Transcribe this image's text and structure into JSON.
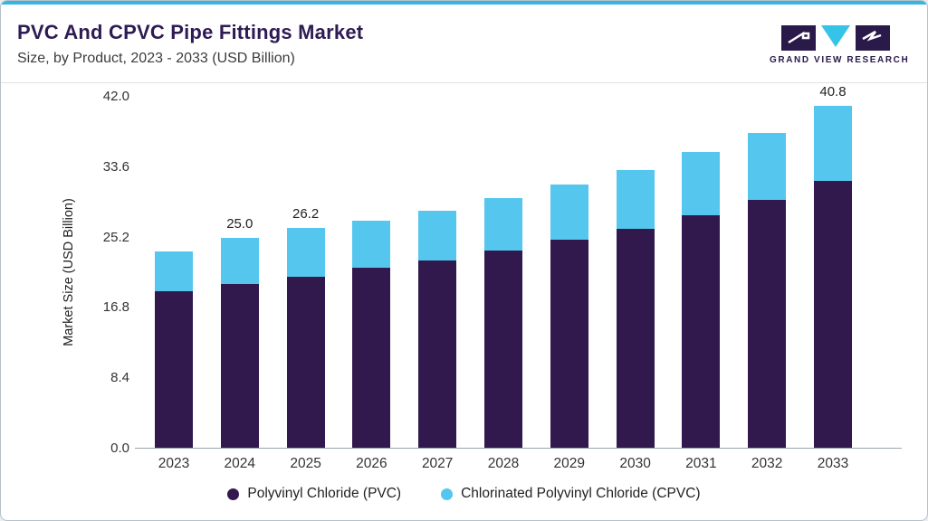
{
  "header": {
    "title": "PVC And CPVC Pipe Fittings Market",
    "subtitle": "Size, by Product, 2023 - 2033 (USD Billion)",
    "brand": "GRAND VIEW RESEARCH"
  },
  "chart_data": {
    "type": "bar",
    "stacked": true,
    "title": "PVC And CPVC Pipe Fittings Market Size, by Product, 2023 - 2033 (USD Billion)",
    "categories": [
      "2023",
      "2024",
      "2025",
      "2026",
      "2027",
      "2028",
      "2029",
      "2030",
      "2031",
      "2032",
      "2033"
    ],
    "series": [
      {
        "name": "Polyvinyl Chloride (PVC)",
        "color": "#31194d",
        "values": [
          18.7,
          19.5,
          20.4,
          21.5,
          22.3,
          23.5,
          24.8,
          26.1,
          27.8,
          29.6,
          31.8
        ]
      },
      {
        "name": "Chlorinated Polyvinyl Chloride (CPVC)",
        "color": "#55c6ed",
        "values": [
          4.7,
          5.5,
          5.8,
          5.6,
          6.0,
          6.3,
          6.6,
          7.0,
          7.5,
          8.0,
          9.0
        ]
      }
    ],
    "bar_labels": [
      "",
      "25.0",
      "26.2",
      "",
      "",
      "",
      "",
      "",
      "",
      "",
      "40.8"
    ],
    "ylabel": "Market Size (USD Billion)",
    "yticks": [
      0.0,
      8.4,
      16.8,
      25.2,
      33.6,
      42.0
    ],
    "ytick_labels": [
      "0.0",
      "8.4",
      "16.8",
      "25.2",
      "33.6",
      "42.0"
    ],
    "ylim": [
      0,
      42
    ],
    "grid": false,
    "legend_position": "bottom"
  },
  "colors": {
    "accent_bar": "#35b4e5",
    "title": "#2f1b54",
    "pvc": "#31194d",
    "cpvc": "#55c6ed"
  }
}
